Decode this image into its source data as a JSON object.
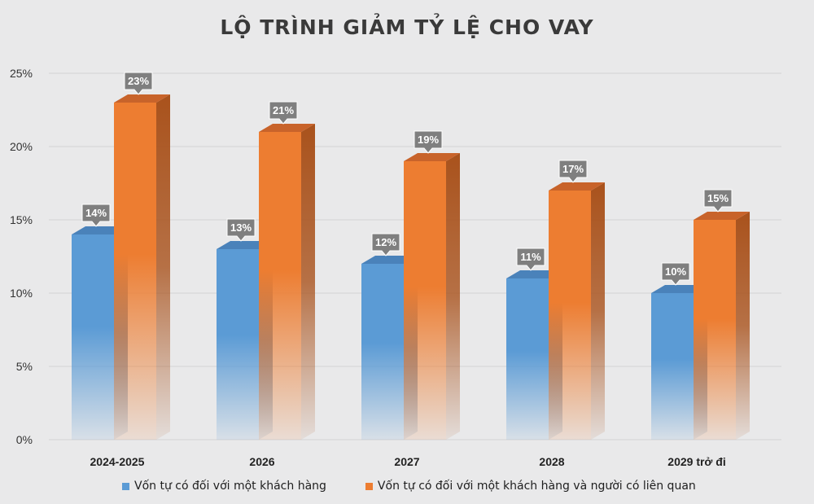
{
  "chart_data": {
    "type": "bar",
    "title": "LỘ TRÌNH GIẢM TỶ LỆ CHO VAY",
    "categories": [
      "2024-2025",
      "2026",
      "2027",
      "2028",
      "2029 trở đi"
    ],
    "series": [
      {
        "name": "Vốn tự có đối với một khách hàng",
        "values": [
          14,
          13,
          12,
          11,
          10
        ],
        "labels": [
          "14%",
          "13%",
          "12%",
          "11%",
          "10%"
        ],
        "color": "#5b9bd5",
        "side_color": "#3d6fa0",
        "top_color": "#4a82ba"
      },
      {
        "name": "Vốn tự có đối với một khách hàng và người có liên quan",
        "values": [
          23,
          21,
          19,
          17,
          15
        ],
        "labels": [
          "23%",
          "21%",
          "19%",
          "17%",
          "15%"
        ],
        "color": "#ed7d31",
        "side_color": "#a9521c",
        "top_color": "#c8632a"
      }
    ],
    "ylim": [
      0,
      25
    ],
    "yticks": [
      {
        "value": 0,
        "label": "0%"
      },
      {
        "value": 5,
        "label": "5%"
      },
      {
        "value": 10,
        "label": "10%"
      },
      {
        "value": 15,
        "label": "15%"
      },
      {
        "value": 20,
        "label": "20%"
      },
      {
        "value": 25,
        "label": "25%"
      }
    ],
    "grid": true,
    "legend_position": "bottom",
    "label_box_color": "#7f7f7f"
  }
}
